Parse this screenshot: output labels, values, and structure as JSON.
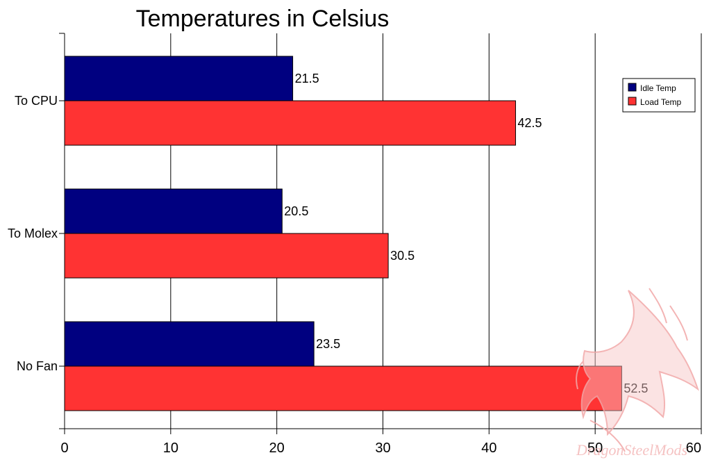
{
  "chart_data": {
    "type": "bar",
    "orientation": "horizontal",
    "title": "Temperatures in Celsius",
    "categories": [
      "To CPU",
      "To Molex",
      "No Fan"
    ],
    "series": [
      {
        "name": "Idle Temp",
        "color": "#000080",
        "values": [
          21.5,
          20.5,
          23.5
        ],
        "labels": [
          "21.5",
          "20.5",
          "23.5"
        ]
      },
      {
        "name": "Load Temp",
        "color": "#ff3333",
        "values": [
          42.5,
          30.5,
          52.5
        ],
        "labels": [
          "42.5",
          "30.5",
          "52.5"
        ]
      }
    ],
    "xlim": [
      0,
      60
    ],
    "xticks": [
      0,
      10,
      20,
      30,
      40,
      50,
      60
    ],
    "xtick_labels": [
      "0",
      "10",
      "20",
      "30",
      "40",
      "50",
      "60"
    ],
    "grid": true,
    "legend_position": "top-right"
  },
  "watermark": {
    "text": "DragonSteelMods",
    "color": "#f4b8b8",
    "icon": "dragon-logo"
  }
}
